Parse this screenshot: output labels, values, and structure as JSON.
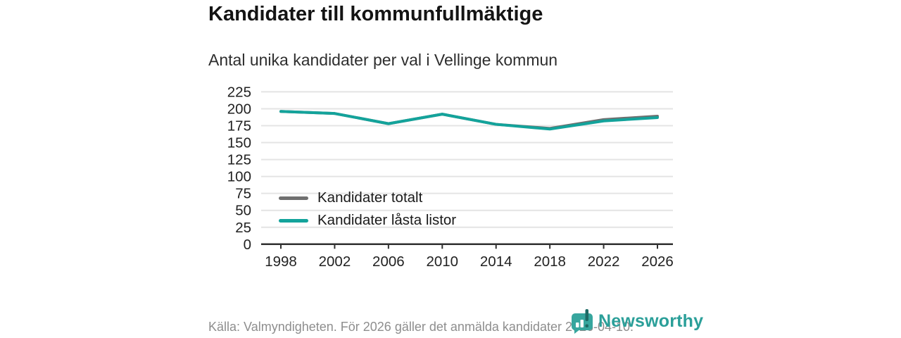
{
  "title": "Kandidater till kommunfullmäktige",
  "subtitle": "Antal unika kandidater per val i Vellinge kommun",
  "footer": {
    "source_text": "Källa: Valmyndigheten. För 2026 gäller det anmälda kandidater 2026-04-10."
  },
  "branding": {
    "name": "Newsworthy",
    "accent_color": "#2b9f99"
  },
  "colors": {
    "gridline": "#e4e4e4",
    "axis": "#303030",
    "tick_label": "#222222"
  },
  "chart_data": {
    "type": "line",
    "title": "Kandidater till kommunfullmäktige",
    "subtitle": "Antal unika kandidater per val i Vellinge kommun",
    "x": [
      1998,
      2002,
      2006,
      2010,
      2014,
      2018,
      2022,
      2026
    ],
    "series": [
      {
        "name": "Kandidater totalt",
        "color": "#6f6f6f",
        "values": [
          196,
          193,
          178,
          192,
          177,
          171,
          184,
          189
        ]
      },
      {
        "name": "Kandidater låsta listor",
        "color": "#13a39b",
        "values": [
          196,
          193,
          178,
          192,
          177,
          170,
          182,
          187
        ]
      }
    ],
    "xlabel": "",
    "ylabel": "",
    "ylim": [
      0,
      225
    ],
    "ytick_step": 25,
    "grid": true,
    "legend_position": "inside-bottom-left"
  }
}
